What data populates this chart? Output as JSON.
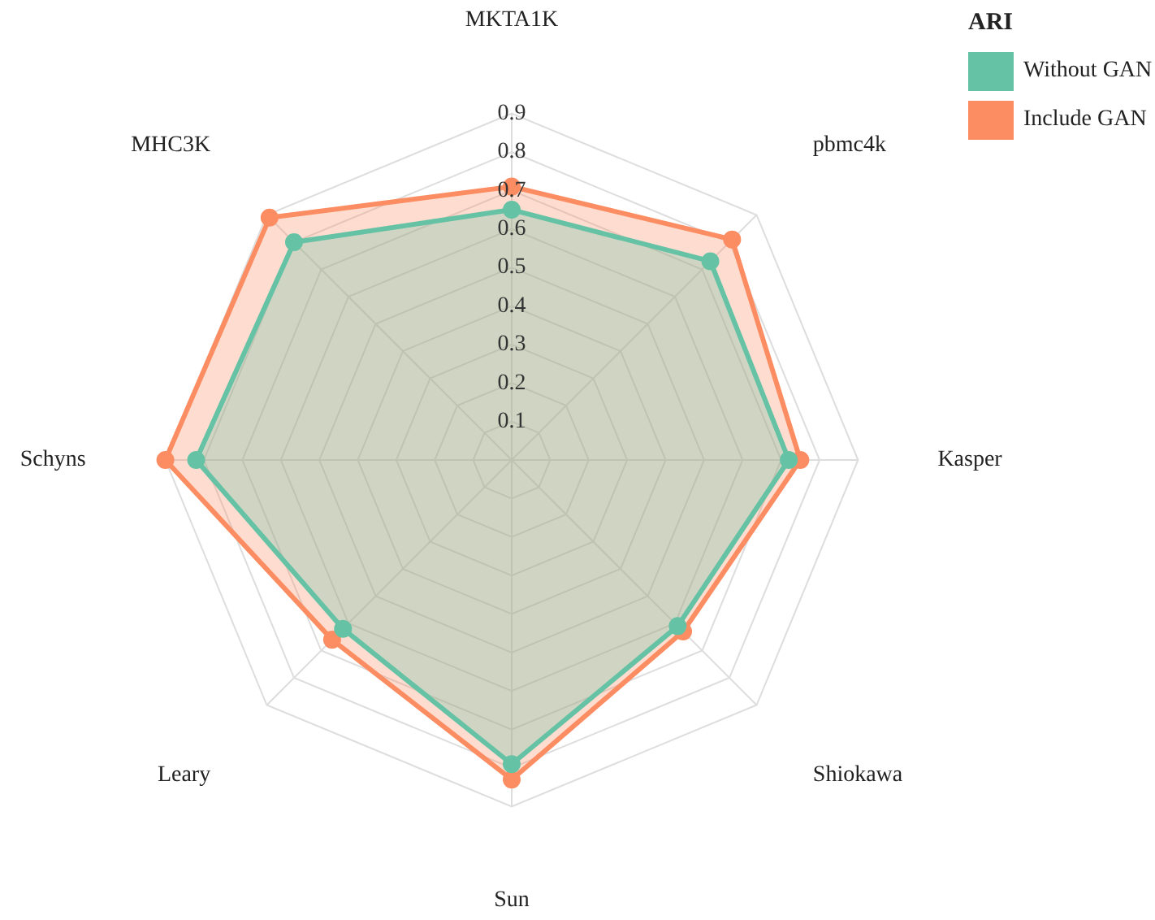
{
  "chart_data": {
    "type": "radar",
    "legend_title": "ARI",
    "legend": "top right",
    "grid": true,
    "marker": "circle",
    "categories": [
      "MKTA1K",
      "pbmc4k",
      "Kasper",
      "Shiokawa",
      "Sun",
      "Leary",
      "Schyns",
      "MHC3K"
    ],
    "ylim": [
      0,
      0.9
    ],
    "yticks": [
      0.1,
      0.2,
      0.3,
      0.4,
      0.5,
      0.6,
      0.7,
      0.8,
      0.9
    ],
    "series": [
      {
        "name": "Without GAN",
        "color": "#66c2a5",
        "values": [
          0.65,
          0.73,
          0.72,
          0.61,
          0.79,
          0.62,
          0.82,
          0.8
        ]
      },
      {
        "name": "Include GAN",
        "color": "#fc8d62",
        "values": [
          0.71,
          0.81,
          0.75,
          0.63,
          0.83,
          0.66,
          0.9,
          0.89
        ]
      }
    ]
  }
}
